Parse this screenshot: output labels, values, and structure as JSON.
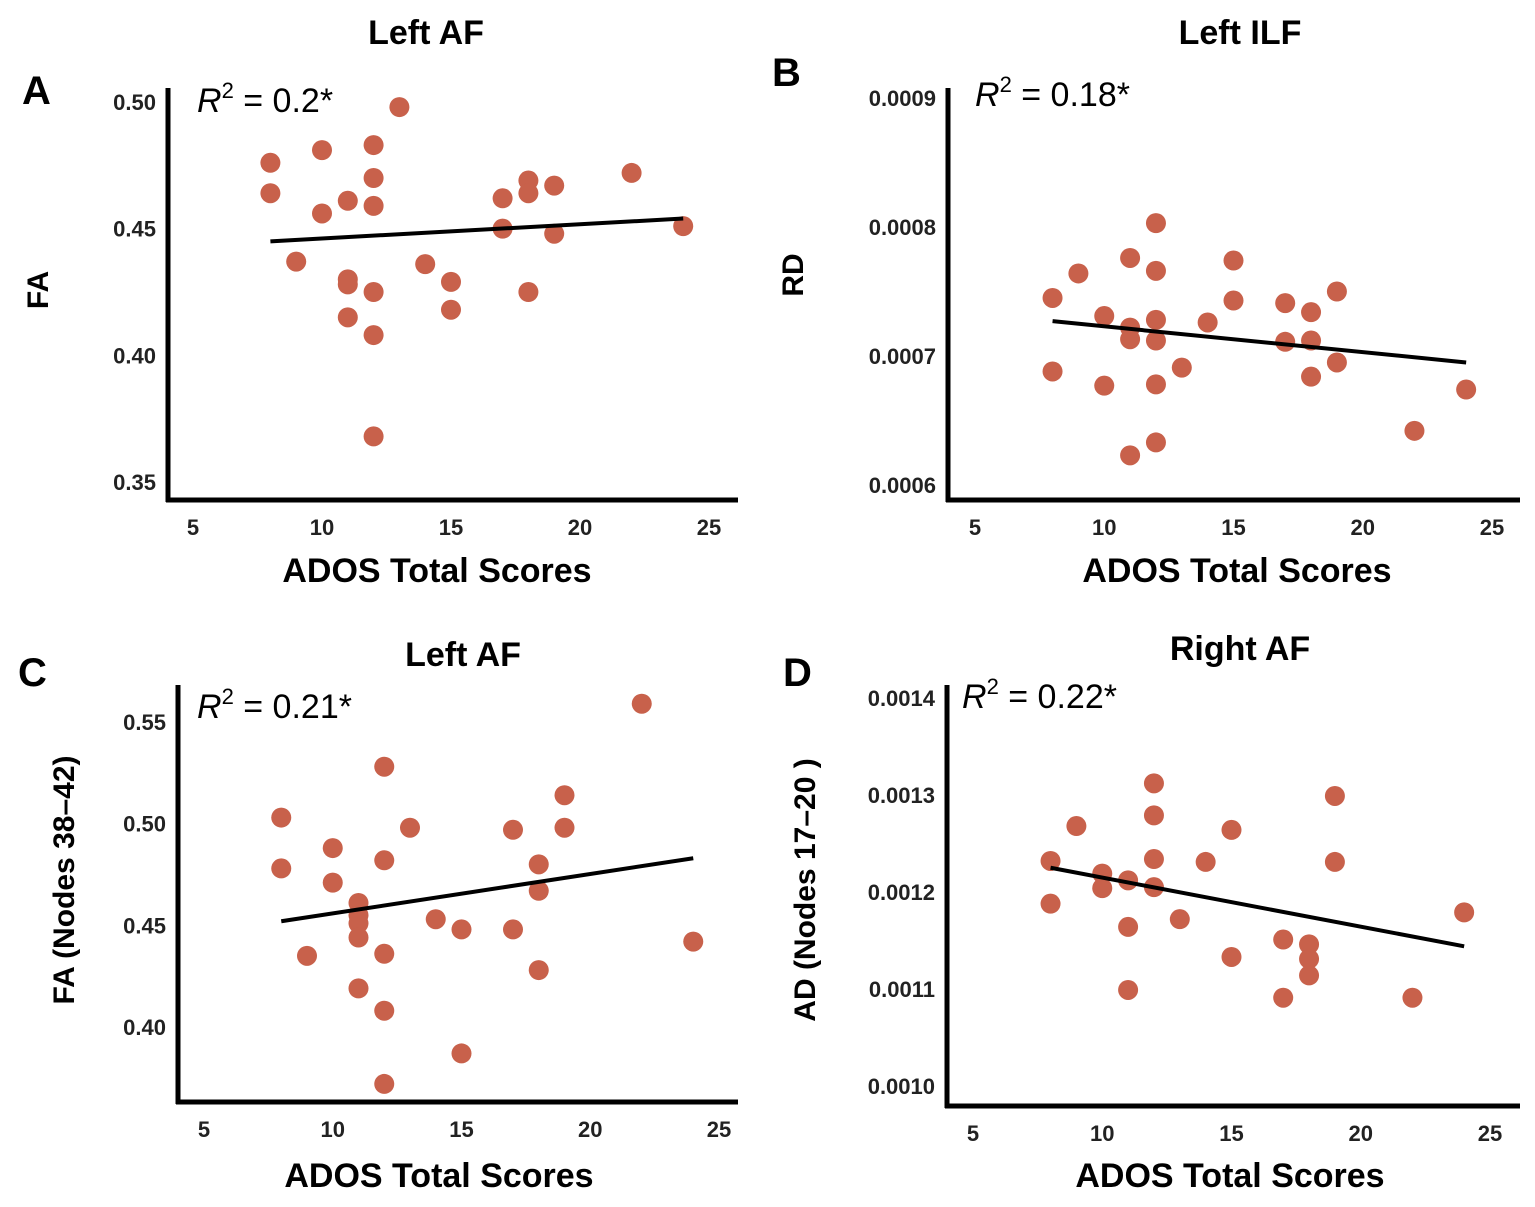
{
  "colors": {
    "point": "#c8614b",
    "line": "#000000",
    "axis": "#000000"
  },
  "chart_data": [
    {
      "type": "scatter",
      "panel": "A",
      "title": "Left AF",
      "xlabel": "ADOS Total Scores",
      "ylabel": "FA",
      "annotation": "R² = 0.2*",
      "annotation_parts": {
        "base": "R",
        "sup": "2",
        "rest": " = 0.2*"
      },
      "xlim": [
        4,
        26
      ],
      "ylim": [
        0.345,
        0.505
      ],
      "xticks": [
        5,
        10,
        15,
        20,
        25
      ],
      "yticks": [
        "0.35",
        "0.40",
        "0.45",
        "0.50"
      ],
      "points": [
        [
          8,
          0.476
        ],
        [
          8,
          0.464
        ],
        [
          9,
          0.437
        ],
        [
          10,
          0.481
        ],
        [
          10,
          0.456
        ],
        [
          11,
          0.461
        ],
        [
          11,
          0.43
        ],
        [
          11,
          0.428
        ],
        [
          11,
          0.415
        ],
        [
          12,
          0.483
        ],
        [
          12,
          0.47
        ],
        [
          12,
          0.459
        ],
        [
          12,
          0.425
        ],
        [
          12,
          0.408
        ],
        [
          12,
          0.368
        ],
        [
          13,
          0.498
        ],
        [
          14,
          0.436
        ],
        [
          15,
          0.429
        ],
        [
          15,
          0.418
        ],
        [
          17,
          0.462
        ],
        [
          17,
          0.45
        ],
        [
          18,
          0.469
        ],
        [
          18,
          0.464
        ],
        [
          18,
          0.425
        ],
        [
          19,
          0.467
        ],
        [
          19,
          0.448
        ],
        [
          22,
          0.472
        ],
        [
          24,
          0.451
        ]
      ],
      "fit_line": [
        [
          8,
          0.445
        ],
        [
          24,
          0.454
        ]
      ]
    },
    {
      "type": "scatter",
      "panel": "B",
      "title": "Left ILF",
      "xlabel": "ADOS Total Scores",
      "ylabel": "RD",
      "annotation_parts": {
        "base": "R",
        "sup": "2",
        "rest": " = 0.18*"
      },
      "xlim": [
        4,
        26
      ],
      "ylim": [
        0.0006,
        0.0009
      ],
      "xticks": [
        5,
        10,
        15,
        20,
        25
      ],
      "yticks": [
        "0.0006",
        "0.0007",
        "0.0008",
        "0.0009"
      ],
      "points": [
        [
          8,
          0.000745
        ],
        [
          8,
          0.000688
        ],
        [
          9,
          0.000764
        ],
        [
          10,
          0.000731
        ],
        [
          10,
          0.000677
        ],
        [
          11,
          0.000776
        ],
        [
          11,
          0.000722
        ],
        [
          11,
          0.000713
        ],
        [
          11,
          0.000623
        ],
        [
          12,
          0.000803
        ],
        [
          12,
          0.000766
        ],
        [
          12,
          0.000728
        ],
        [
          12,
          0.000712
        ],
        [
          12,
          0.000678
        ],
        [
          12,
          0.000633
        ],
        [
          13,
          0.000691
        ],
        [
          14,
          0.000726
        ],
        [
          15,
          0.000774
        ],
        [
          15,
          0.000743
        ],
        [
          17,
          0.000741
        ],
        [
          17,
          0.000711
        ],
        [
          18,
          0.000734
        ],
        [
          18,
          0.000712
        ],
        [
          18,
          0.000684
        ],
        [
          19,
          0.00075
        ],
        [
          19,
          0.000695
        ],
        [
          22,
          0.000642
        ],
        [
          24,
          0.000674
        ]
      ],
      "fit_line": [
        [
          8,
          0.000727
        ],
        [
          24,
          0.000695
        ]
      ]
    },
    {
      "type": "scatter",
      "panel": "C",
      "title": "Left AF",
      "xlabel": "ADOS Total Scores",
      "ylabel": "FA (Nodes 38–42)",
      "annotation_parts": {
        "base": "R",
        "sup": "2",
        "rest": " = 0.21*"
      },
      "xlim": [
        4,
        26
      ],
      "ylim": [
        0.37,
        0.56
      ],
      "xticks": [
        5,
        10,
        15,
        20,
        25
      ],
      "yticks": [
        "0.40",
        "0.45",
        "0.50",
        "0.55"
      ],
      "points": [
        [
          8,
          0.503
        ],
        [
          8,
          0.478
        ],
        [
          9,
          0.435
        ],
        [
          10,
          0.488
        ],
        [
          10,
          0.471
        ],
        [
          11,
          0.461
        ],
        [
          11,
          0.455
        ],
        [
          11,
          0.451
        ],
        [
          11,
          0.444
        ],
        [
          11,
          0.419
        ],
        [
          12,
          0.528
        ],
        [
          12,
          0.482
        ],
        [
          12,
          0.436
        ],
        [
          12,
          0.408
        ],
        [
          12,
          0.372
        ],
        [
          13,
          0.498
        ],
        [
          14,
          0.453
        ],
        [
          15,
          0.448
        ],
        [
          15,
          0.387
        ],
        [
          17,
          0.497
        ],
        [
          17,
          0.448
        ],
        [
          18,
          0.48
        ],
        [
          18,
          0.467
        ],
        [
          18,
          0.428
        ],
        [
          19,
          0.514
        ],
        [
          19,
          0.498
        ],
        [
          22,
          0.559
        ],
        [
          24,
          0.442
        ]
      ],
      "fit_line": [
        [
          8,
          0.452
        ],
        [
          24,
          0.483
        ]
      ]
    },
    {
      "type": "scatter",
      "panel": "D",
      "title": "Right AF",
      "xlabel": "ADOS Total Scores",
      "ylabel": "AD (Nodes 17–20 )",
      "annotation_parts": {
        "base": "R",
        "sup": "2",
        "rest": " = 0.22*"
      },
      "xlim": [
        4,
        26
      ],
      "ylim": [
        0.001,
        0.0014
      ],
      "xticks": [
        5,
        10,
        15,
        20,
        25
      ],
      "yticks": [
        "0.0010",
        "0.0011",
        "0.0012",
        "0.0013",
        "0.0014"
      ],
      "points": [
        [
          8,
          0.001232
        ],
        [
          8,
          0.001188
        ],
        [
          9,
          0.001268
        ],
        [
          10,
          0.001219
        ],
        [
          10,
          0.001204
        ],
        [
          11,
          0.001212
        ],
        [
          11,
          0.001164
        ],
        [
          11,
          0.001099
        ],
        [
          12,
          0.001312
        ],
        [
          12,
          0.001279
        ],
        [
          12,
          0.001234
        ],
        [
          12,
          0.001205
        ],
        [
          13,
          0.001172
        ],
        [
          14,
          0.001231
        ],
        [
          15,
          0.001264
        ],
        [
          15,
          0.001133
        ],
        [
          17,
          0.001151
        ],
        [
          17,
          0.001091
        ],
        [
          18,
          0.001146
        ],
        [
          18,
          0.001131
        ],
        [
          18,
          0.001114
        ],
        [
          19,
          0.001299
        ],
        [
          19,
          0.001231
        ],
        [
          22,
          0.001091
        ],
        [
          24,
          0.001179
        ]
      ],
      "fit_line": [
        [
          8,
          0.001225
        ],
        [
          24,
          0.001144
        ]
      ]
    }
  ]
}
